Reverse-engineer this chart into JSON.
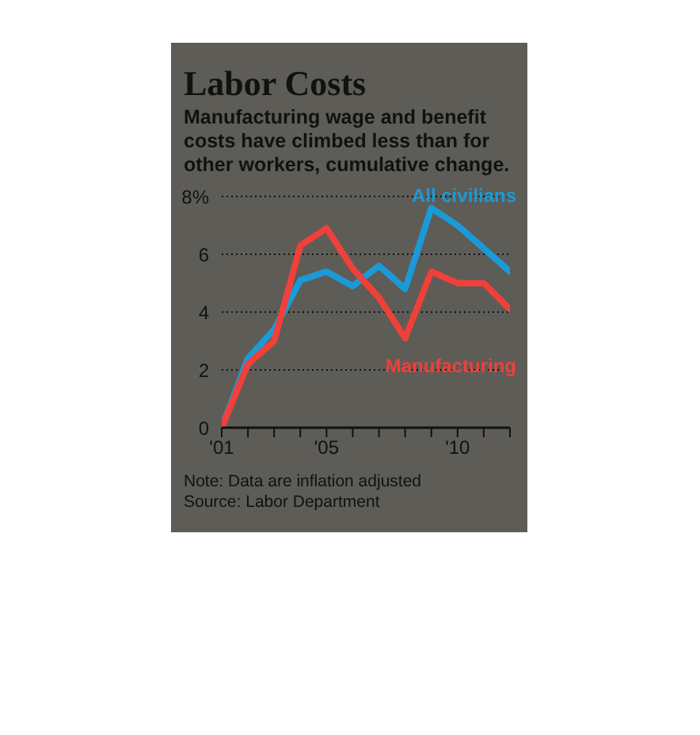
{
  "chart_data": {
    "type": "line",
    "title": "Labor Costs",
    "subtitle": "Manufacturing wage and benefit costs have climbed less than for other workers, cumulative change.",
    "x": [
      2001,
      2002,
      2003,
      2004,
      2005,
      2006,
      2007,
      2008,
      2009,
      2010,
      2011,
      2012
    ],
    "series": [
      {
        "name": "All civilians",
        "color": "#1b9ad8",
        "values": [
          0,
          2.4,
          3.4,
          5.1,
          5.4,
          4.9,
          5.6,
          4.8,
          7.6,
          7.0,
          6.2,
          5.4
        ]
      },
      {
        "name": "Manufacturing",
        "color": "#f0403a",
        "values": [
          0,
          2.2,
          3.0,
          6.3,
          6.9,
          5.5,
          4.5,
          3.1,
          5.4,
          5.0,
          5.0,
          4.1
        ]
      }
    ],
    "xlim": [
      2001,
      2012
    ],
    "xticks": [
      {
        "value": 2001,
        "label": "'01"
      },
      {
        "value": 2002,
        "label": null
      },
      {
        "value": 2003,
        "label": null
      },
      {
        "value": 2004,
        "label": null
      },
      {
        "value": 2005,
        "label": "'05"
      },
      {
        "value": 2006,
        "label": null
      },
      {
        "value": 2007,
        "label": null
      },
      {
        "value": 2008,
        "label": null
      },
      {
        "value": 2009,
        "label": null
      },
      {
        "value": 2010,
        "label": "'10"
      },
      {
        "value": 2011,
        "label": null
      },
      {
        "value": 2012,
        "label": null
      }
    ],
    "ylim": [
      0,
      8
    ],
    "yticks": [
      0,
      2,
      4,
      6,
      {
        "value": 8,
        "label": "8%"
      }
    ],
    "grid": "y",
    "legend": false,
    "marker": "none",
    "line_style": "solid",
    "annotations": [
      "Note: Data are inflation adjusted",
      "Source: Labor Department"
    ]
  }
}
